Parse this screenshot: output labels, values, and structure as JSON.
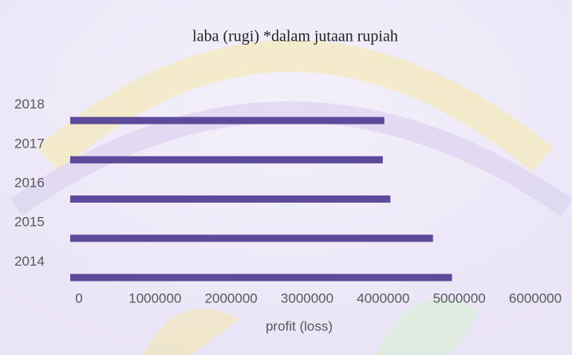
{
  "chart_data": {
    "type": "bar",
    "orientation": "horizontal",
    "title": "laba (rugi) *dalam jutaan rupiah",
    "x_label": "profit (loss)",
    "categories": [
      "2014",
      "2015",
      "2016",
      "2017",
      "2018"
    ],
    "values": [
      5020000,
      4770000,
      4210000,
      4110000,
      4130000
    ],
    "color": "#5e4a9a",
    "xlim": [
      0,
      6000000
    ],
    "xticks": [
      0,
      1000000,
      2000000,
      3000000,
      4000000,
      5000000,
      6000000
    ],
    "grid": false
  }
}
